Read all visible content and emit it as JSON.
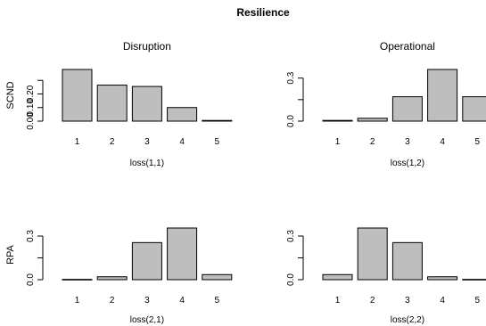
{
  "figure": {
    "title": "Resilience",
    "row_labels": [
      "SCND",
      "RPA"
    ]
  },
  "chart_data": [
    {
      "type": "bar",
      "title": "Disruption",
      "xlabel": "loss(1,1)",
      "ylabel": "SCND",
      "categories": [
        "1",
        "2",
        "3",
        "4",
        "5"
      ],
      "values": [
        0.38,
        0.265,
        0.255,
        0.1,
        0.005
      ],
      "ylim": [
        0,
        0.38
      ],
      "yticks": [
        0.0,
        0.1,
        0.2,
        0.3
      ],
      "ytick_labels": [
        "0.00",
        "0.10",
        "0.20",
        ""
      ],
      "grid": false
    },
    {
      "type": "bar",
      "title": "Operational",
      "xlabel": "loss(1,2)",
      "ylabel": "",
      "categories": [
        "1",
        "2",
        "3",
        "4",
        "5"
      ],
      "values": [
        0.005,
        0.02,
        0.17,
        0.36,
        0.17
      ],
      "ylim": [
        0,
        0.36
      ],
      "yticks": [
        0.0,
        0.15,
        0.3
      ],
      "ytick_labels": [
        "0.0",
        "",
        "0.3"
      ],
      "grid": false
    },
    {
      "type": "bar",
      "title": "",
      "xlabel": "loss(2,1)",
      "ylabel": "RPA",
      "categories": [
        "1",
        "2",
        "3",
        "4",
        "5"
      ],
      "values": [
        0.002,
        0.02,
        0.255,
        0.355,
        0.035
      ],
      "ylim": [
        0,
        0.355
      ],
      "yticks": [
        0.0,
        0.15,
        0.3
      ],
      "ytick_labels": [
        "0.0",
        "",
        "0.3"
      ],
      "grid": false
    },
    {
      "type": "bar",
      "title": "",
      "xlabel": "loss(2,2)",
      "ylabel": "",
      "categories": [
        "1",
        "2",
        "3",
        "4",
        "5"
      ],
      "values": [
        0.035,
        0.355,
        0.255,
        0.02,
        0.002
      ],
      "ylim": [
        0,
        0.355
      ],
      "yticks": [
        0.0,
        0.15,
        0.3
      ],
      "ytick_labels": [
        "0.0",
        "",
        "0.3"
      ],
      "grid": false
    }
  ],
  "colors": {
    "bar_fill": "#bebebe",
    "bar_stroke": "#000000",
    "axis": "#000000"
  }
}
